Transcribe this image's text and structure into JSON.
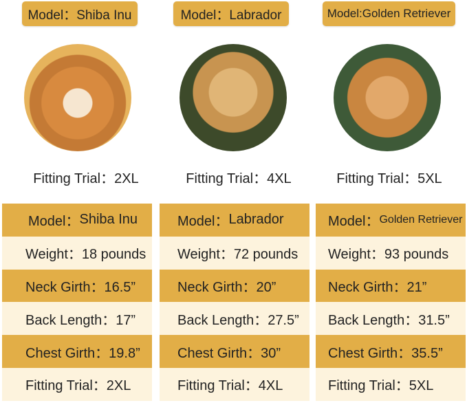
{
  "cards": [
    {
      "model": "Model：Shiba Inu",
      "photo": "shiba-inu-photo",
      "fitting": "Fitting Trial：2XL"
    },
    {
      "model": "Model：Labrador",
      "photo": "labrador-photo",
      "fitting": "Fitting Trial：4XL"
    },
    {
      "model": "Model:Golden Retriever",
      "photo": "golden-retriever-photo",
      "fitting": "Fitting Trial：5XL"
    }
  ],
  "table": [
    {
      "model_label": "Model：",
      "model": "Shiba Inu",
      "weight": "Weight：18 pounds",
      "neck": "Neck Girth：16.5”",
      "back": "Back Length：17”",
      "chest": "Chest Girth：19.8”",
      "fitting": "Fitting Trial：2XL"
    },
    {
      "model_label": "Model：",
      "model": "Labrador",
      "weight": "Weight：72 pounds",
      "neck": "Neck Girth：20”",
      "back": "Back Length：27.5”",
      "chest": "Chest Girth：30”",
      "fitting": "Fitting Trial：4XL"
    },
    {
      "model_label": "Model：",
      "model": "Golden Retriever",
      "weight": "Weight：93 pounds",
      "neck": "Neck Girth：21”",
      "back": "Back Length：31.5”",
      "chest": "Chest Girth：35.5”",
      "fitting": "Fitting Trial：5XL"
    }
  ],
  "colors": {
    "gold": "#e2ae47",
    "cream": "#fdf3dd"
  }
}
